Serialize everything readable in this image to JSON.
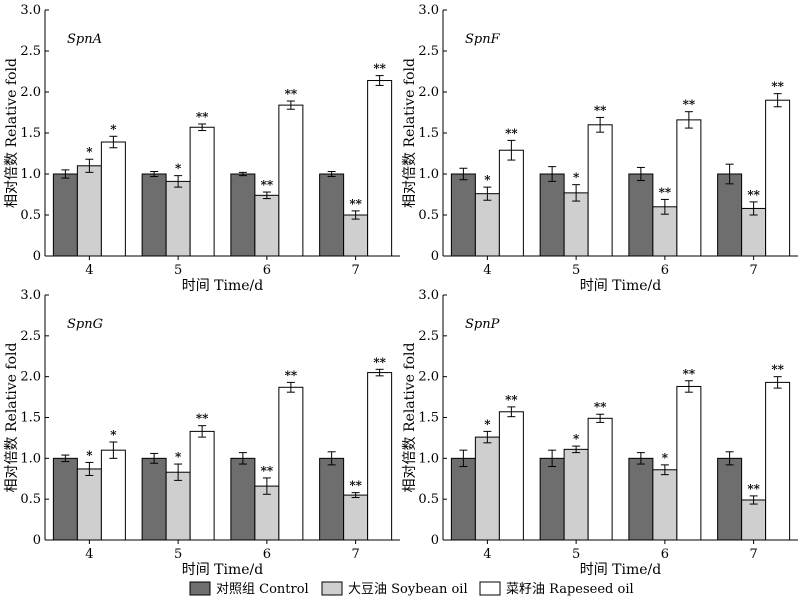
{
  "legend": [
    {
      "label": "对照组  Control",
      "color": "#6e6e6e"
    },
    {
      "label": "大豆油  Soybean oil",
      "color": "#cfcfcf"
    },
    {
      "label": "菜籽油  Rapeseed oil",
      "color": "#ffffff"
    }
  ],
  "chart_data": [
    {
      "type": "bar",
      "title": "SpnA",
      "xlabel": "时间 Time/d",
      "ylabel": "相对倍数 Relative fold",
      "ylim": [
        0,
        3.0
      ],
      "yticks": [
        "0",
        "0.5",
        "1.0",
        "1.5",
        "2.0",
        "2.5",
        "3.0"
      ],
      "categories": [
        "4",
        "5",
        "6",
        "7"
      ],
      "series": [
        {
          "name": "对照组  Control",
          "values": [
            1.0,
            1.0,
            1.0,
            1.0
          ],
          "errors": [
            0.05,
            0.03,
            0.02,
            0.03
          ],
          "sig": [
            "",
            "",
            "",
            ""
          ]
        },
        {
          "name": "大豆油  Soybean oil",
          "values": [
            1.1,
            0.91,
            0.74,
            0.5
          ],
          "errors": [
            0.08,
            0.07,
            0.04,
            0.05
          ],
          "sig": [
            "*",
            "*",
            "**",
            "**"
          ]
        },
        {
          "name": "菜籽油  Rapeseed oil",
          "values": [
            1.39,
            1.57,
            1.84,
            2.14
          ],
          "errors": [
            0.07,
            0.04,
            0.05,
            0.06
          ],
          "sig": [
            "*",
            "**",
            "**",
            "**"
          ]
        }
      ]
    },
    {
      "type": "bar",
      "title": "SpnF",
      "xlabel": "时间 Time/d",
      "ylabel": "相对倍数 Relative fold",
      "ylim": [
        0,
        3.0
      ],
      "yticks": [
        "0",
        "0.5",
        "1.0",
        "1.5",
        "2.0",
        "2.5",
        "3.0"
      ],
      "categories": [
        "4",
        "5",
        "6",
        "7"
      ],
      "series": [
        {
          "name": "对照组  Control",
          "values": [
            1.0,
            1.0,
            1.0,
            1.0
          ],
          "errors": [
            0.07,
            0.09,
            0.08,
            0.12
          ],
          "sig": [
            "",
            "",
            "",
            ""
          ]
        },
        {
          "name": "大豆油  Soybean oil",
          "values": [
            0.76,
            0.77,
            0.6,
            0.58
          ],
          "errors": [
            0.08,
            0.1,
            0.09,
            0.08
          ],
          "sig": [
            "*",
            "*",
            "**",
            "**"
          ]
        },
        {
          "name": "菜籽油  Rapeseed oil",
          "values": [
            1.29,
            1.6,
            1.66,
            1.9
          ],
          "errors": [
            0.12,
            0.09,
            0.1,
            0.08
          ],
          "sig": [
            "**",
            "**",
            "**",
            "**"
          ]
        }
      ]
    },
    {
      "type": "bar",
      "title": "SpnG",
      "xlabel": "时间 Time/d",
      "ylabel": "相对倍数 Relative fold",
      "ylim": [
        0,
        3.0
      ],
      "yticks": [
        "0",
        "0.5",
        "1.0",
        "1.5",
        "2.0",
        "2.5",
        "3.0"
      ],
      "categories": [
        "4",
        "5",
        "6",
        "7"
      ],
      "series": [
        {
          "name": "对照组  Control",
          "values": [
            1.0,
            1.0,
            1.0,
            1.0
          ],
          "errors": [
            0.04,
            0.06,
            0.07,
            0.08
          ],
          "sig": [
            "",
            "",
            "",
            ""
          ]
        },
        {
          "name": "大豆油  Soybean oil",
          "values": [
            0.87,
            0.83,
            0.66,
            0.55
          ],
          "errors": [
            0.08,
            0.1,
            0.1,
            0.03
          ],
          "sig": [
            "*",
            "*",
            "**",
            "**"
          ]
        },
        {
          "name": "菜籽油  Rapeseed oil",
          "values": [
            1.1,
            1.33,
            1.87,
            2.05
          ],
          "errors": [
            0.1,
            0.07,
            0.06,
            0.04
          ],
          "sig": [
            "*",
            "**",
            "**",
            "**"
          ]
        }
      ]
    },
    {
      "type": "bar",
      "title": "SpnP",
      "xlabel": "时间 Time/d",
      "ylabel": "相对倍数 Relative fold",
      "ylim": [
        0,
        3.0
      ],
      "yticks": [
        "0",
        "0.5",
        "1.0",
        "1.5",
        "2.0",
        "2.5",
        "3.0"
      ],
      "categories": [
        "4",
        "5",
        "6",
        "7"
      ],
      "series": [
        {
          "name": "对照组  Control",
          "values": [
            1.0,
            1.0,
            1.0,
            1.0
          ],
          "errors": [
            0.1,
            0.1,
            0.07,
            0.08
          ],
          "sig": [
            "",
            "",
            "",
            ""
          ]
        },
        {
          "name": "大豆油  Soybean oil",
          "values": [
            1.26,
            1.11,
            0.86,
            0.49
          ],
          "errors": [
            0.07,
            0.04,
            0.06,
            0.05
          ],
          "sig": [
            "*",
            "*",
            "*",
            "**"
          ]
        },
        {
          "name": "菜籽油  Rapeseed oil",
          "values": [
            1.57,
            1.49,
            1.88,
            1.93
          ],
          "errors": [
            0.06,
            0.05,
            0.07,
            0.07
          ],
          "sig": [
            "**",
            "**",
            "**",
            "**"
          ]
        }
      ]
    }
  ]
}
